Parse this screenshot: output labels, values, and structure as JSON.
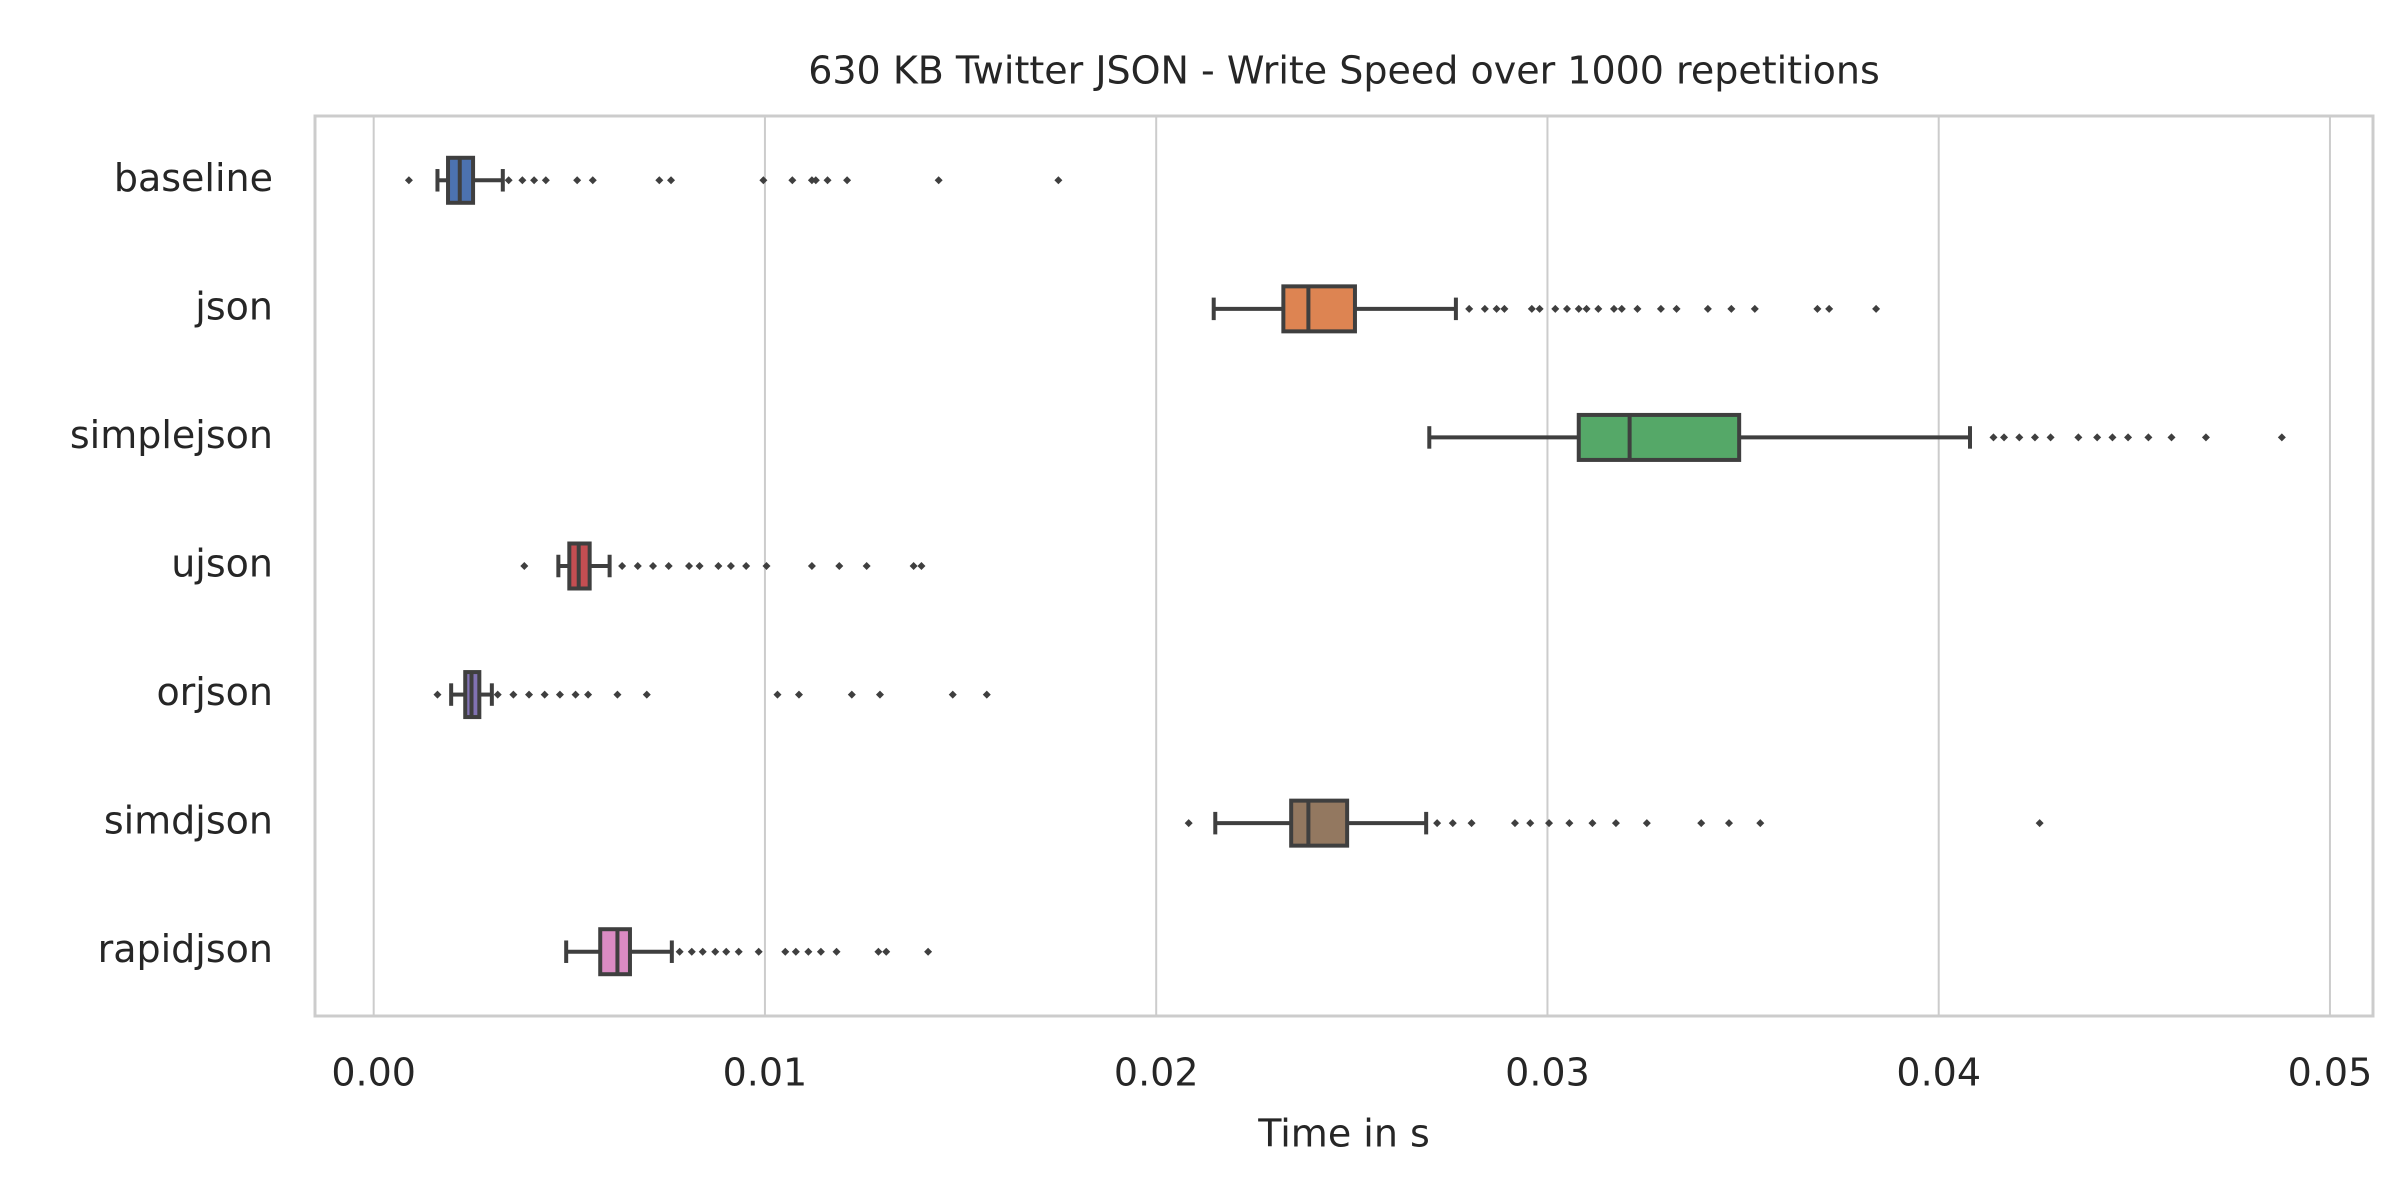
{
  "chart_data": {
    "type": "boxplot",
    "orientation": "horizontal",
    "title": "630 KB Twitter JSON - Write Speed over 1000 repetitions",
    "x_label": "Time in s",
    "categories": [
      "baseline",
      "json",
      "simplejson",
      "ujson",
      "orjson",
      "simdjson",
      "rapidjson"
    ],
    "colors": [
      "#4c72b0",
      "#dd8452",
      "#55a868",
      "#c44e52",
      "#8172b3",
      "#937860",
      "#da8bc3"
    ],
    "xlim": [
      -0.0015,
      0.0511
    ],
    "xticks": [
      {
        "value": 0,
        "label": "0.00"
      },
      {
        "value": 0.01,
        "label": "0.01"
      },
      {
        "value": 0.02,
        "label": "0.02"
      },
      {
        "value": 0.03,
        "label": "0.03"
      },
      {
        "value": 0.04,
        "label": "0.04"
      },
      {
        "value": 0.05,
        "label": "0.05"
      }
    ],
    "grid": true,
    "boxes": [
      {
        "whislo": 0.00163,
        "q1": 0.0019,
        "med": 0.0022,
        "q3": 0.00254,
        "whishi": 0.0033,
        "fliers": [
          0.0009,
          0.00345,
          0.0038,
          0.0041,
          0.0044,
          0.0052,
          0.0056,
          0.0073,
          0.0076,
          0.00996,
          0.0107,
          0.0112,
          0.0113,
          0.0116,
          0.0121,
          0.01444,
          0.0175
        ]
      },
      {
        "whislo": 0.02147,
        "q1": 0.02325,
        "med": 0.02389,
        "q3": 0.02508,
        "whishi": 0.02766,
        "fliers": [
          0.028,
          0.0284,
          0.0287,
          0.0289,
          0.0296,
          0.0298,
          0.0302,
          0.0305,
          0.0308,
          0.031,
          0.0313,
          0.0317,
          0.0319,
          0.0323,
          0.0329,
          0.0333,
          0.0341,
          0.0347,
          0.0353,
          0.0369,
          0.0372,
          0.0384
        ]
      },
      {
        "whislo": 0.02698,
        "q1": 0.0308,
        "med": 0.0321,
        "q3": 0.0349,
        "whishi": 0.0408,
        "fliers": [
          0.0414,
          0.04167,
          0.04206,
          0.04246,
          0.04286,
          0.04357,
          0.04405,
          0.04444,
          0.04484,
          0.04536,
          0.04595,
          0.04683,
          0.04877
        ]
      },
      {
        "whislo": 0.00472,
        "q1": 0.005,
        "med": 0.00524,
        "q3": 0.00552,
        "whishi": 0.00603,
        "fliers": [
          0.00385,
          0.00635,
          0.00675,
          0.00714,
          0.00754,
          0.00806,
          0.00833,
          0.00881,
          0.00913,
          0.00952,
          0.01004,
          0.0112,
          0.0119,
          0.0126,
          0.0138,
          0.014
        ]
      },
      {
        "whislo": 0.00198,
        "q1": 0.00234,
        "med": 0.0025,
        "q3": 0.0027,
        "whishi": 0.00302,
        "fliers": [
          0.00163,
          0.00317,
          0.00357,
          0.00397,
          0.00437,
          0.00476,
          0.00516,
          0.00548,
          0.00623,
          0.00698,
          0.01032,
          0.01087,
          0.01222,
          0.01294,
          0.0148,
          0.01567
        ]
      },
      {
        "whislo": 0.02151,
        "q1": 0.02345,
        "med": 0.02389,
        "q3": 0.02488,
        "whishi": 0.0269,
        "fliers": [
          0.02083,
          0.02718,
          0.02758,
          0.02806,
          0.02917,
          0.02956,
          0.03004,
          0.03056,
          0.03115,
          0.03175,
          0.03254,
          0.03393,
          0.03464,
          0.03544,
          0.04258
        ]
      },
      {
        "whislo": 0.00492,
        "q1": 0.00579,
        "med": 0.00623,
        "q3": 0.00655,
        "whishi": 0.00762,
        "fliers": [
          0.00782,
          0.00813,
          0.00841,
          0.00873,
          0.00901,
          0.00933,
          0.00984,
          0.01052,
          0.01079,
          0.01111,
          0.01143,
          0.01183,
          0.0129,
          0.0131,
          0.01417
        ]
      }
    ]
  }
}
